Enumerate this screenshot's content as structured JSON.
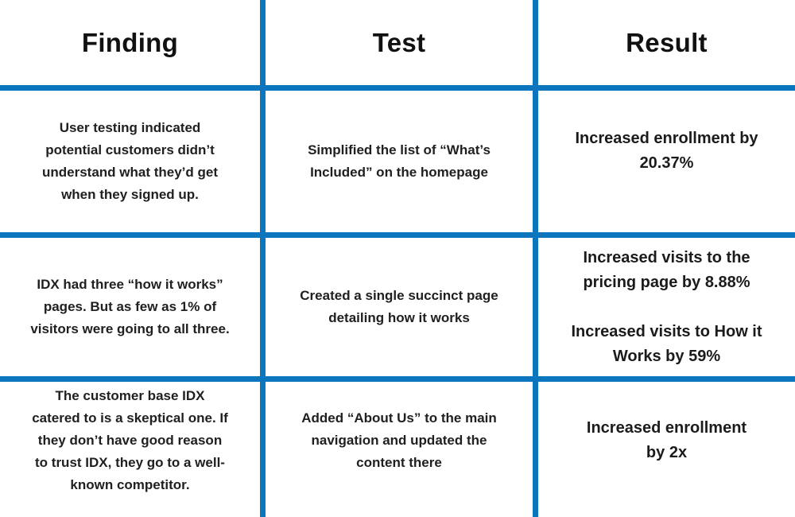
{
  "colors": {
    "grid_blue": "#0b75bd",
    "text_dark": "#202020"
  },
  "table": {
    "columns": [
      "Finding",
      "Test",
      "Result"
    ],
    "rows": [
      {
        "finding": "User testing indicated\npotential customers didn’t\nunderstand what they’d get\nwhen they signed up.",
        "test": "Simplified the list of “What’s\nIncluded” on the homepage",
        "results": [
          "Increased enrollment by\n20.37%"
        ]
      },
      {
        "finding": "IDX had three “how it works”\npages. But as few as 1% of\nvisitors were going to all three.",
        "test": "Created a single succinct page\ndetailing how it works",
        "results": [
          "Increased visits to the\npricing page by 8.88%",
          "Increased visits to How it\nWorks by 59%"
        ]
      },
      {
        "finding": "The customer base IDX\ncatered to is a skeptical one. If\nthey don’t have good reason\nto trust IDX, they go to a well-\nknown competitor.",
        "test": "Added “About Us” to the main\nnavigation and updated the\ncontent there",
        "results": [
          "Increased enrollment\nby 2x"
        ]
      }
    ]
  }
}
